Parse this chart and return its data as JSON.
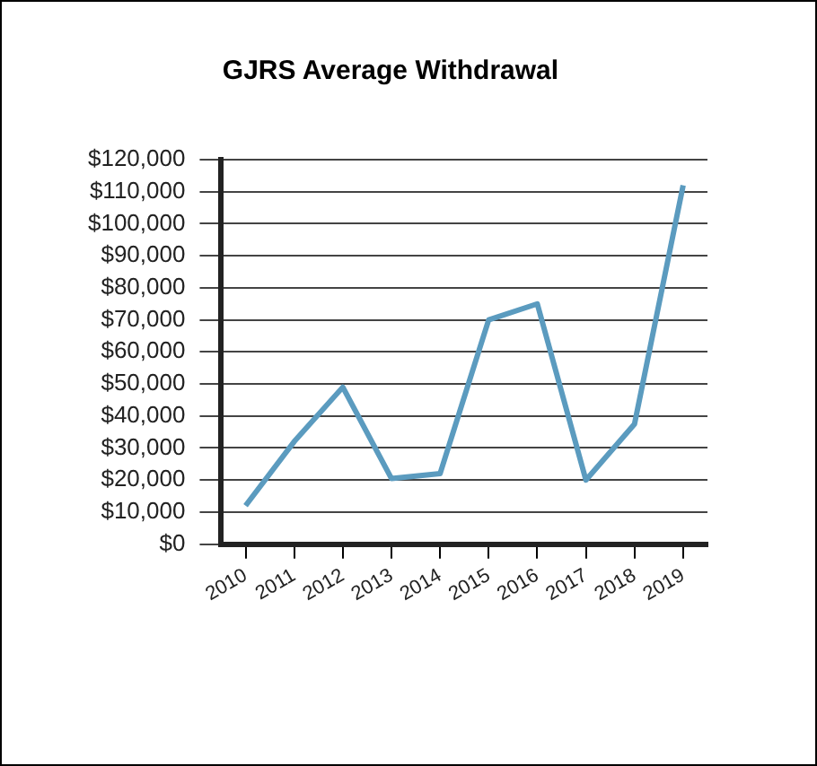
{
  "chart_data": {
    "type": "line",
    "title": "GJRS Average Withdrawal",
    "categories": [
      "2010",
      "2011",
      "2012",
      "2013",
      "2014",
      "2015",
      "2016",
      "2017",
      "2018",
      "2019"
    ],
    "series": [
      {
        "color": "#5b9bbf",
        "values": [
          12000,
          32000,
          49000,
          20500,
          22000,
          70000,
          75000,
          20000,
          37500,
          112000
        ]
      }
    ],
    "ylim": [
      0,
      120000
    ],
    "yticks": [
      {
        "value": 0,
        "label": "$0"
      },
      {
        "value": 10000,
        "label": "$10,000"
      },
      {
        "value": 20000,
        "label": "$20,000"
      },
      {
        "value": 30000,
        "label": "$30,000"
      },
      {
        "value": 40000,
        "label": "$40,000"
      },
      {
        "value": 50000,
        "label": "$50,000"
      },
      {
        "value": 60000,
        "label": "$60,000"
      },
      {
        "value": 70000,
        "label": "$70,000"
      },
      {
        "value": 80000,
        "label": "$80,000"
      },
      {
        "value": 90000,
        "label": "$90,000"
      },
      {
        "value": 100000,
        "label": "$100,000"
      },
      {
        "value": 110000,
        "label": "$110,000"
      },
      {
        "value": 120000,
        "label": "$120,000"
      }
    ],
    "grid": "y",
    "legend": false,
    "marker": "none",
    "line_style": "solid"
  }
}
